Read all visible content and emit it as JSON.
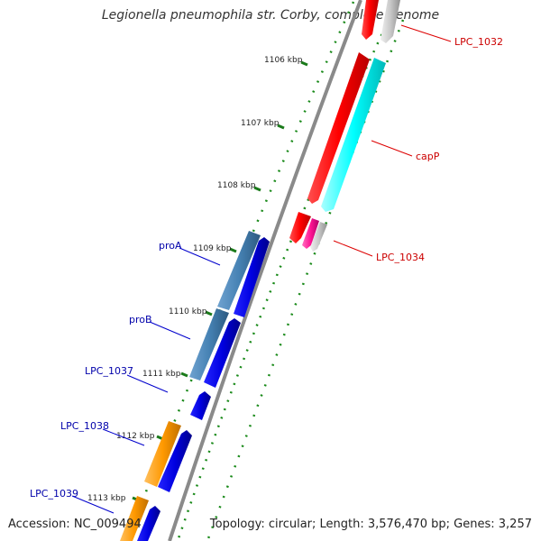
{
  "title": "Legionella pneumophila str. Corby, complete genome",
  "footer": {
    "accession": "Accession: NC_009494",
    "summary": "Topology: circular; Length: 3,576,470 bp; Genes: 3,257"
  },
  "scale": {
    "ticks": [
      {
        "label": "1106 kbp"
      },
      {
        "label": "1107 kbp"
      },
      {
        "label": "1108 kbp"
      },
      {
        "label": "1109 kbp"
      },
      {
        "label": "1110 kbp"
      },
      {
        "label": "1111 kbp"
      },
      {
        "label": "1112 kbp"
      },
      {
        "label": "1113 kbp"
      }
    ]
  },
  "genes": {
    "forward_labels": [
      {
        "name": "LPC_1032",
        "color": "#cc0000"
      },
      {
        "name": "capP",
        "color": "#cc0000"
      },
      {
        "name": "LPC_1034",
        "color": "#cc0000"
      }
    ],
    "reverse_labels": [
      {
        "name": "proA",
        "color": "#0000aa"
      },
      {
        "name": "proB",
        "color": "#0000aa"
      },
      {
        "name": "LPC_1037",
        "color": "#0000aa"
      },
      {
        "name": "LPC_1038",
        "color": "#0000aa"
      },
      {
        "name": "LPC_1039",
        "color": "#0000aa"
      }
    ]
  },
  "colors": {
    "forward_cds": "#ff0000",
    "reverse_cds": "#0000ee",
    "forward_feature": "#00ffff",
    "reverse_feature": "#4682b4",
    "orange_feature": "#ff9900",
    "gray_feature": "#c8c8c8",
    "pink_feature": "#ff1493",
    "backbone": "#888888",
    "gc_marks": "#1a8a1a"
  }
}
